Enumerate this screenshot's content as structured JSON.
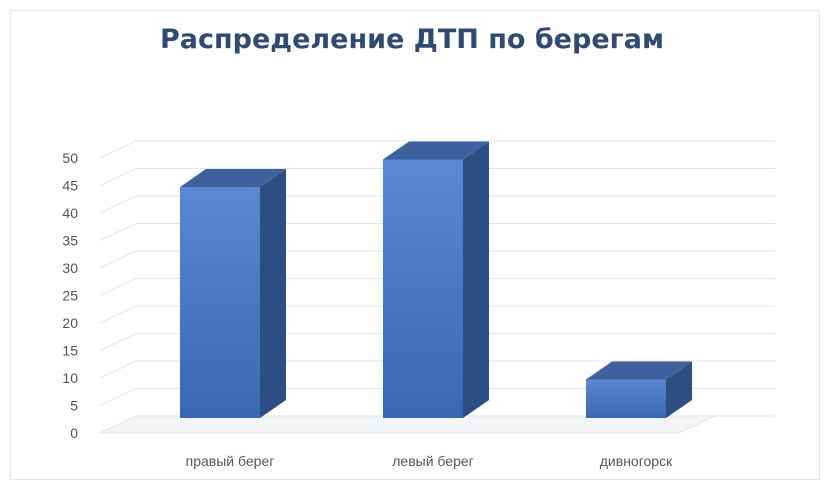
{
  "chart_data": {
    "type": "bar",
    "title": "Распределение ДТП по берегам",
    "categories": [
      "правый берег",
      "левый берег",
      "дивногорск"
    ],
    "values": [
      42,
      47,
      7
    ],
    "ylim": [
      0,
      50
    ],
    "yticks": [
      0,
      5,
      10,
      15,
      20,
      25,
      30,
      35,
      40,
      45,
      50
    ],
    "xlabel": "",
    "ylabel": "",
    "grid": true,
    "style": "3d-column",
    "colors": {
      "bar": "#4f7bc8",
      "bar_top": "#3f629e",
      "bar_side": "#2c4e83",
      "grid": "#e3e6ea",
      "text": "#555555",
      "title": "#2f4b74"
    }
  }
}
